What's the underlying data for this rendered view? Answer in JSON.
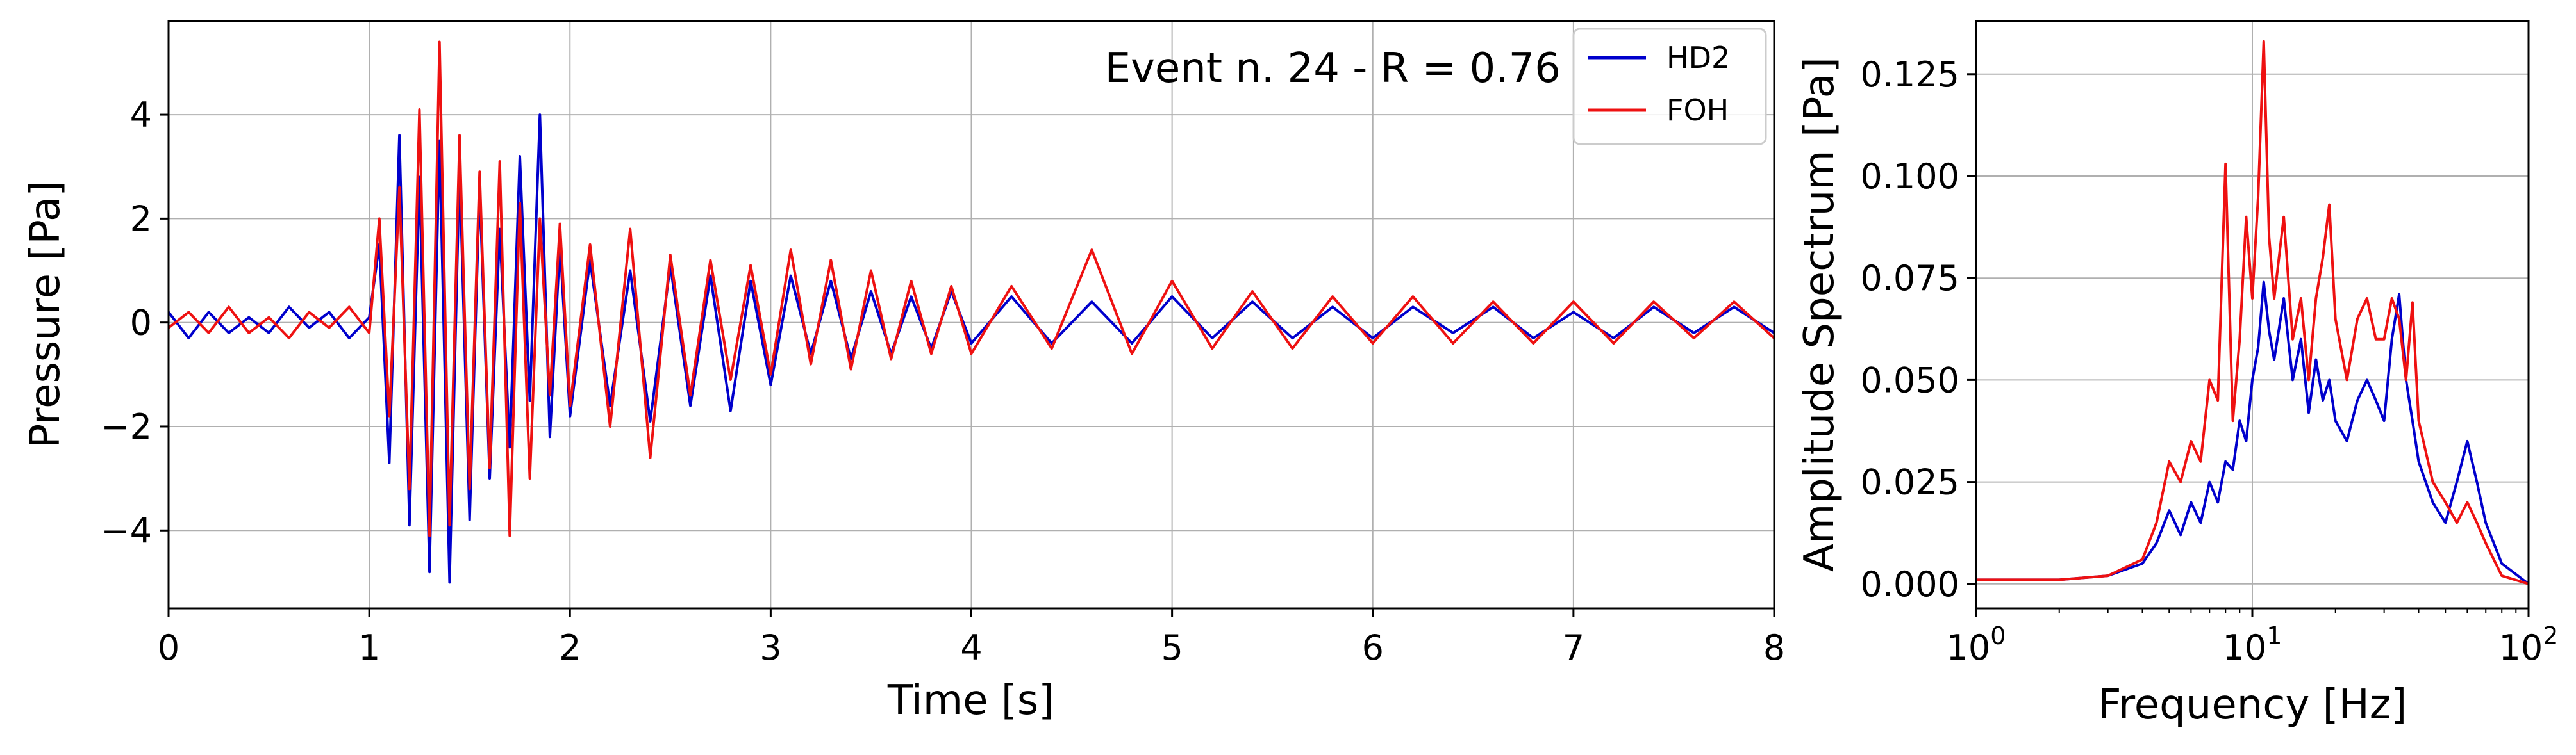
{
  "chart_data": [
    {
      "type": "line",
      "xlabel": "Time [s]",
      "ylabel": "Pressure [Pa]",
      "xlim": [
        0,
        8
      ],
      "ylim": [
        -5.5,
        5.8
      ],
      "xticks": [
        0,
        1,
        2,
        3,
        4,
        5,
        6,
        7,
        8
      ],
      "xtick_labels": [
        "0",
        "1",
        "2",
        "3",
        "4",
        "5",
        "6",
        "7",
        "8"
      ],
      "yticks": [
        -4,
        -2,
        0,
        2,
        4
      ],
      "ytick_labels": [
        "−4",
        "−2",
        "0",
        "2",
        "4"
      ],
      "grid": true,
      "annotation": "Event n. 24 - R = 0.76",
      "legend": {
        "placement": "top-right",
        "entries": [
          "HD2",
          "FOH"
        ]
      },
      "series": [
        {
          "name": "HD2",
          "color": "#0000cc",
          "x": [
            0,
            0.1,
            0.2,
            0.3,
            0.4,
            0.5,
            0.6,
            0.7,
            0.8,
            0.9,
            1.0,
            1.05,
            1.1,
            1.15,
            1.2,
            1.25,
            1.3,
            1.35,
            1.4,
            1.45,
            1.5,
            1.55,
            1.6,
            1.65,
            1.7,
            1.75,
            1.8,
            1.85,
            1.9,
            1.95,
            2.0,
            2.1,
            2.2,
            2.3,
            2.4,
            2.5,
            2.6,
            2.7,
            2.8,
            2.9,
            3.0,
            3.1,
            3.2,
            3.3,
            3.4,
            3.5,
            3.6,
            3.7,
            3.8,
            3.9,
            4.0,
            4.2,
            4.4,
            4.6,
            4.8,
            5.0,
            5.2,
            5.4,
            5.6,
            5.8,
            6.0,
            6.2,
            6.4,
            6.6,
            6.8,
            7.0,
            7.2,
            7.4,
            7.6,
            7.8,
            8.0
          ],
          "y": [
            0.2,
            -0.3,
            0.2,
            -0.2,
            0.1,
            -0.2,
            0.3,
            -0.1,
            0.2,
            -0.3,
            0.1,
            1.5,
            -2.7,
            3.6,
            -3.9,
            2.8,
            -4.8,
            3.5,
            -5.0,
            3.0,
            -3.8,
            2.6,
            -3.0,
            1.8,
            -2.4,
            3.2,
            -1.5,
            4.0,
            -2.2,
            1.5,
            -1.8,
            1.2,
            -1.6,
            1.0,
            -1.9,
            1.1,
            -1.6,
            0.9,
            -1.7,
            0.8,
            -1.2,
            0.9,
            -0.6,
            0.8,
            -0.7,
            0.6,
            -0.6,
            0.5,
            -0.5,
            0.6,
            -0.4,
            0.5,
            -0.4,
            0.4,
            -0.4,
            0.5,
            -0.3,
            0.4,
            -0.3,
            0.3,
            -0.3,
            0.3,
            -0.2,
            0.3,
            -0.3,
            0.2,
            -0.3,
            0.3,
            -0.2,
            0.3,
            -0.2
          ]
        },
        {
          "name": "FOH",
          "color": "#ee1111",
          "x": [
            0,
            0.1,
            0.2,
            0.3,
            0.4,
            0.5,
            0.6,
            0.7,
            0.8,
            0.9,
            1.0,
            1.05,
            1.1,
            1.15,
            1.2,
            1.25,
            1.3,
            1.35,
            1.4,
            1.45,
            1.5,
            1.55,
            1.6,
            1.65,
            1.7,
            1.75,
            1.8,
            1.85,
            1.9,
            1.95,
            2.0,
            2.1,
            2.2,
            2.3,
            2.4,
            2.5,
            2.6,
            2.7,
            2.8,
            2.9,
            3.0,
            3.1,
            3.2,
            3.3,
            3.4,
            3.5,
            3.6,
            3.7,
            3.8,
            3.9,
            4.0,
            4.2,
            4.4,
            4.6,
            4.8,
            5.0,
            5.2,
            5.4,
            5.6,
            5.8,
            6.0,
            6.2,
            6.4,
            6.6,
            6.8,
            7.0,
            7.2,
            7.4,
            7.6,
            7.8,
            8.0
          ],
          "y": [
            -0.1,
            0.2,
            -0.2,
            0.3,
            -0.2,
            0.1,
            -0.3,
            0.2,
            -0.1,
            0.3,
            -0.2,
            2.0,
            -1.8,
            2.6,
            -3.2,
            4.1,
            -4.1,
            5.4,
            -3.9,
            3.6,
            -3.2,
            2.9,
            -2.8,
            3.1,
            -4.1,
            2.3,
            -3.0,
            2.0,
            -1.4,
            1.9,
            -1.6,
            1.5,
            -2.0,
            1.8,
            -2.6,
            1.3,
            -1.4,
            1.2,
            -1.1,
            1.1,
            -1.0,
            1.4,
            -0.8,
            1.2,
            -0.9,
            1.0,
            -0.7,
            0.8,
            -0.6,
            0.7,
            -0.6,
            0.7,
            -0.5,
            1.4,
            -0.6,
            0.8,
            -0.5,
            0.6,
            -0.5,
            0.5,
            -0.4,
            0.5,
            -0.4,
            0.4,
            -0.4,
            0.4,
            -0.4,
            0.4,
            -0.3,
            0.4,
            -0.3
          ]
        }
      ]
    },
    {
      "type": "line",
      "xlabel": "Frequency [Hz]",
      "ylabel": "Amplitude Spectrum [Pa]",
      "xscale": "log",
      "xlim": [
        1,
        100
      ],
      "ylim": [
        -0.006,
        0.138
      ],
      "xticks": [
        1,
        10,
        100
      ],
      "xtick_labels": [
        {
          "base": "10",
          "exp": "0"
        },
        {
          "base": "10",
          "exp": "1"
        },
        {
          "base": "10",
          "exp": "2"
        }
      ],
      "yticks": [
        0,
        0.025,
        0.05,
        0.075,
        0.1,
        0.125
      ],
      "ytick_labels": [
        "0.000",
        "0.025",
        "0.050",
        "0.075",
        "0.100",
        "0.125"
      ],
      "grid": true,
      "series": [
        {
          "name": "HD2",
          "color": "#0000cc",
          "x": [
            1,
            2,
            3,
            4,
            4.5,
            5,
            5.5,
            6,
            6.5,
            7,
            7.5,
            8,
            8.5,
            9,
            9.5,
            10,
            10.5,
            11,
            11.5,
            12,
            13,
            14,
            15,
            16,
            17,
            18,
            19,
            20,
            22,
            24,
            26,
            28,
            30,
            32,
            34,
            36,
            38,
            40,
            45,
            50,
            55,
            60,
            65,
            70,
            80,
            100
          ],
          "y": [
            0.001,
            0.001,
            0.002,
            0.005,
            0.01,
            0.018,
            0.012,
            0.02,
            0.015,
            0.025,
            0.02,
            0.03,
            0.028,
            0.04,
            0.035,
            0.05,
            0.058,
            0.074,
            0.062,
            0.055,
            0.07,
            0.05,
            0.06,
            0.042,
            0.055,
            0.045,
            0.05,
            0.04,
            0.035,
            0.045,
            0.05,
            0.045,
            0.04,
            0.06,
            0.071,
            0.05,
            0.04,
            0.03,
            0.02,
            0.015,
            0.025,
            0.035,
            0.025,
            0.015,
            0.005,
            0.0
          ]
        },
        {
          "name": "FOH",
          "color": "#ee1111",
          "x": [
            1,
            2,
            3,
            4,
            4.5,
            5,
            5.5,
            6,
            6.5,
            7,
            7.5,
            8,
            8.5,
            9,
            9.5,
            10,
            10.5,
            11,
            11.5,
            12,
            13,
            14,
            15,
            16,
            17,
            18,
            19,
            20,
            22,
            24,
            26,
            28,
            30,
            32,
            34,
            36,
            38,
            40,
            45,
            50,
            55,
            60,
            65,
            70,
            80,
            100
          ],
          "y": [
            0.001,
            0.001,
            0.002,
            0.006,
            0.015,
            0.03,
            0.025,
            0.035,
            0.03,
            0.05,
            0.045,
            0.103,
            0.04,
            0.06,
            0.09,
            0.07,
            0.095,
            0.133,
            0.085,
            0.07,
            0.09,
            0.06,
            0.07,
            0.05,
            0.07,
            0.08,
            0.093,
            0.065,
            0.05,
            0.065,
            0.07,
            0.06,
            0.06,
            0.07,
            0.065,
            0.05,
            0.069,
            0.04,
            0.025,
            0.02,
            0.015,
            0.02,
            0.015,
            0.01,
            0.002,
            0.0
          ]
        }
      ]
    }
  ]
}
